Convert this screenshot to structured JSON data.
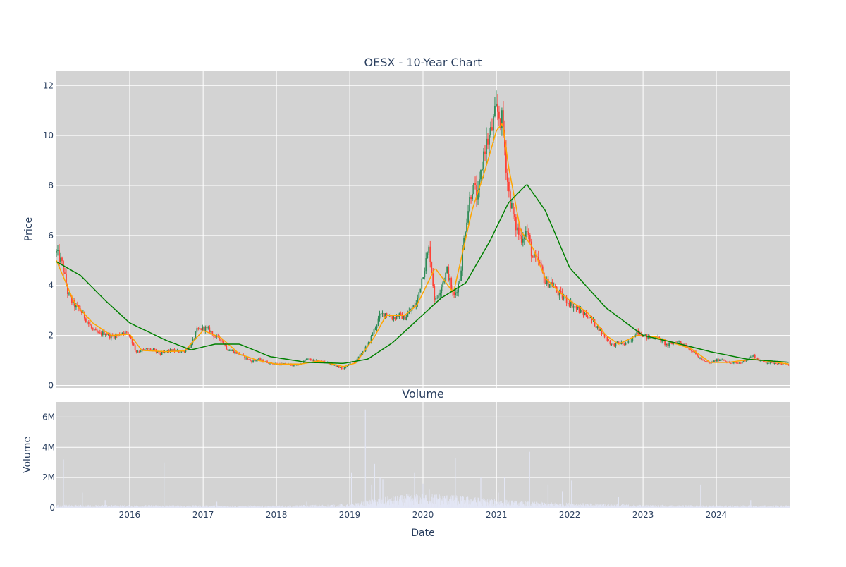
{
  "chart_data": [
    {
      "type": "candlestick",
      "title": "OESX - 10-Year Chart",
      "xlabel": "",
      "ylabel": "Price",
      "xlim": [
        "2015-01-01",
        "2024-12-31"
      ],
      "ylim": [
        -0.1,
        12.6
      ],
      "y_ticks": [
        0,
        2,
        4,
        6,
        8,
        10,
        12
      ],
      "grid": true,
      "legend": "none",
      "colors": {
        "up": "#2e8b57",
        "down": "#ff4136",
        "ma_short": "#ffa500",
        "ma_long": "#008000",
        "plot_bg": "#d3d3d3"
      },
      "price_path": [
        [
          "2015-01-01",
          5.3
        ],
        [
          "2015-02-01",
          4.8
        ],
        [
          "2015-03-01",
          3.6
        ],
        [
          "2015-04-01",
          3.2
        ],
        [
          "2015-05-01",
          3.0
        ],
        [
          "2015-06-01",
          2.6
        ],
        [
          "2015-07-01",
          2.2
        ],
        [
          "2015-08-01",
          2.05
        ],
        [
          "2015-09-01",
          2.1
        ],
        [
          "2015-10-01",
          1.95
        ],
        [
          "2015-11-01",
          2.0
        ],
        [
          "2015-12-01",
          2.15
        ],
        [
          "2016-01-01",
          2.0
        ],
        [
          "2016-02-01",
          1.35
        ],
        [
          "2016-03-01",
          1.4
        ],
        [
          "2016-04-01",
          1.45
        ],
        [
          "2016-05-01",
          1.4
        ],
        [
          "2016-06-01",
          1.25
        ],
        [
          "2016-07-01",
          1.35
        ],
        [
          "2016-08-01",
          1.4
        ],
        [
          "2016-09-01",
          1.35
        ],
        [
          "2016-10-01",
          1.4
        ],
        [
          "2016-11-01",
          1.6
        ],
        [
          "2016-12-01",
          2.2
        ],
        [
          "2017-01-01",
          2.3
        ],
        [
          "2017-02-01",
          2.2
        ],
        [
          "2017-03-01",
          1.95
        ],
        [
          "2017-04-01",
          1.85
        ],
        [
          "2017-05-01",
          1.45
        ],
        [
          "2017-06-01",
          1.35
        ],
        [
          "2017-07-01",
          1.25
        ],
        [
          "2017-08-01",
          1.1
        ],
        [
          "2017-09-01",
          0.95
        ],
        [
          "2017-10-01",
          1.05
        ],
        [
          "2017-11-01",
          0.95
        ],
        [
          "2017-12-01",
          0.9
        ],
        [
          "2018-01-01",
          0.85
        ],
        [
          "2018-02-01",
          0.85
        ],
        [
          "2018-03-01",
          0.85
        ],
        [
          "2018-04-01",
          0.8
        ],
        [
          "2018-05-01",
          0.85
        ],
        [
          "2018-06-01",
          1.05
        ],
        [
          "2018-07-01",
          1.0
        ],
        [
          "2018-08-01",
          0.95
        ],
        [
          "2018-09-01",
          0.95
        ],
        [
          "2018-10-01",
          0.85
        ],
        [
          "2018-11-01",
          0.75
        ],
        [
          "2018-12-01",
          0.65
        ],
        [
          "2019-01-01",
          0.9
        ],
        [
          "2019-02-01",
          0.95
        ],
        [
          "2019-03-01",
          1.3
        ],
        [
          "2019-04-01",
          1.6
        ],
        [
          "2019-05-01",
          2.2
        ],
        [
          "2019-06-01",
          2.8
        ],
        [
          "2019-07-01",
          2.9
        ],
        [
          "2019-08-01",
          2.7
        ],
        [
          "2019-09-01",
          2.8
        ],
        [
          "2019-10-01",
          2.7
        ],
        [
          "2019-11-01",
          3.0
        ],
        [
          "2019-12-01",
          3.3
        ],
        [
          "2020-01-01",
          4.5
        ],
        [
          "2020-02-01",
          5.5
        ],
        [
          "2020-03-01",
          3.3
        ],
        [
          "2020-04-01",
          4.0
        ],
        [
          "2020-05-01",
          4.6
        ],
        [
          "2020-06-01",
          3.5
        ],
        [
          "2020-07-01",
          4.2
        ],
        [
          "2020-08-01",
          6.5
        ],
        [
          "2020-09-01",
          8.0
        ],
        [
          "2020-10-01",
          7.5
        ],
        [
          "2020-11-01",
          9.5
        ],
        [
          "2020-12-01",
          10.0
        ],
        [
          "2021-01-01",
          11.0
        ],
        [
          "2021-02-01",
          10.5
        ],
        [
          "2021-03-01",
          7.8
        ],
        [
          "2021-04-01",
          6.5
        ],
        [
          "2021-05-01",
          5.9
        ],
        [
          "2021-06-01",
          6.2
        ],
        [
          "2021-07-01",
          5.1
        ],
        [
          "2021-08-01",
          4.9
        ],
        [
          "2021-09-01",
          4.1
        ],
        [
          "2021-10-01",
          4.1
        ],
        [
          "2021-11-01",
          3.7
        ],
        [
          "2021-12-01",
          3.5
        ],
        [
          "2022-01-01",
          3.3
        ],
        [
          "2022-02-01",
          3.1
        ],
        [
          "2022-03-01",
          2.9
        ],
        [
          "2022-04-01",
          2.8
        ],
        [
          "2022-05-01",
          2.5
        ],
        [
          "2022-06-01",
          2.2
        ],
        [
          "2022-07-01",
          1.9
        ],
        [
          "2022-08-01",
          1.6
        ],
        [
          "2022-09-01",
          1.7
        ],
        [
          "2022-10-01",
          1.65
        ],
        [
          "2022-11-01",
          1.75
        ],
        [
          "2022-12-01",
          2.2
        ],
        [
          "2023-01-01",
          2.0
        ],
        [
          "2023-02-01",
          1.9
        ],
        [
          "2023-03-01",
          1.95
        ],
        [
          "2023-04-01",
          1.8
        ],
        [
          "2023-05-01",
          1.6
        ],
        [
          "2023-06-01",
          1.7
        ],
        [
          "2023-07-01",
          1.75
        ],
        [
          "2023-08-01",
          1.6
        ],
        [
          "2023-09-01",
          1.4
        ],
        [
          "2023-10-01",
          1.15
        ],
        [
          "2023-11-01",
          0.95
        ],
        [
          "2023-12-01",
          0.9
        ],
        [
          "2024-01-01",
          1.0
        ],
        [
          "2024-02-01",
          1.05
        ],
        [
          "2024-03-01",
          0.9
        ],
        [
          "2024-04-01",
          0.88
        ],
        [
          "2024-05-01",
          0.9
        ],
        [
          "2024-06-01",
          1.05
        ],
        [
          "2024-07-01",
          1.2
        ],
        [
          "2024-08-01",
          1.0
        ],
        [
          "2024-09-01",
          0.92
        ],
        [
          "2024-10-01",
          0.9
        ],
        [
          "2024-11-01",
          0.9
        ],
        [
          "2024-12-01",
          0.85
        ],
        [
          "2024-12-31",
          0.8
        ]
      ],
      "ma_short": [
        [
          "2015-01-01",
          5.0
        ],
        [
          "2015-04-01",
          3.3
        ],
        [
          "2015-07-01",
          2.5
        ],
        [
          "2015-10-01",
          2.0
        ],
        [
          "2016-01-01",
          2.05
        ],
        [
          "2016-03-01",
          1.4
        ],
        [
          "2016-07-01",
          1.35
        ],
        [
          "2016-10-01",
          1.38
        ],
        [
          "2017-01-01",
          2.2
        ],
        [
          "2017-04-01",
          1.9
        ],
        [
          "2017-07-01",
          1.25
        ],
        [
          "2017-10-01",
          1.0
        ],
        [
          "2018-01-01",
          0.85
        ],
        [
          "2018-05-01",
          0.85
        ],
        [
          "2018-08-01",
          0.98
        ],
        [
          "2018-12-01",
          0.75
        ],
        [
          "2019-02-01",
          0.9
        ],
        [
          "2019-05-01",
          1.9
        ],
        [
          "2019-07-01",
          2.8
        ],
        [
          "2019-10-01",
          2.8
        ],
        [
          "2019-12-01",
          3.2
        ],
        [
          "2020-03-01",
          4.7
        ],
        [
          "2020-06-01",
          3.7
        ],
        [
          "2020-09-01",
          7.0
        ],
        [
          "2020-11-01",
          8.5
        ],
        [
          "2021-01-01",
          10.2
        ],
        [
          "2021-02-01",
          10.5
        ],
        [
          "2021-03-01",
          8.8
        ],
        [
          "2021-05-01",
          6.2
        ],
        [
          "2021-07-01",
          5.5
        ],
        [
          "2021-09-01",
          4.3
        ],
        [
          "2021-11-01",
          3.8
        ],
        [
          "2022-01-01",
          3.4
        ],
        [
          "2022-04-01",
          2.9
        ],
        [
          "2022-07-01",
          2.0
        ],
        [
          "2022-09-01",
          1.65
        ],
        [
          "2022-12-01",
          2.0
        ],
        [
          "2023-03-01",
          1.95
        ],
        [
          "2023-06-01",
          1.7
        ],
        [
          "2023-09-01",
          1.45
        ],
        [
          "2023-12-01",
          0.92
        ],
        [
          "2024-03-01",
          0.92
        ],
        [
          "2024-07-01",
          1.05
        ],
        [
          "2024-12-31",
          0.85
        ]
      ],
      "ma_long": [
        [
          "2015-01-01",
          4.95
        ],
        [
          "2015-05-01",
          4.4
        ],
        [
          "2015-09-01",
          3.4
        ],
        [
          "2016-01-01",
          2.5
        ],
        [
          "2016-07-01",
          1.8
        ],
        [
          "2016-11-01",
          1.42
        ],
        [
          "2017-03-01",
          1.65
        ],
        [
          "2017-07-01",
          1.65
        ],
        [
          "2017-12-01",
          1.15
        ],
        [
          "2018-06-01",
          0.92
        ],
        [
          "2018-12-01",
          0.88
        ],
        [
          "2019-04-01",
          1.05
        ],
        [
          "2019-08-01",
          1.7
        ],
        [
          "2019-12-01",
          2.6
        ],
        [
          "2020-04-01",
          3.5
        ],
        [
          "2020-08-01",
          4.1
        ],
        [
          "2020-12-01",
          5.8
        ],
        [
          "2021-03-01",
          7.3
        ],
        [
          "2021-06-01",
          8.05
        ],
        [
          "2021-09-01",
          7.0
        ],
        [
          "2022-01-01",
          4.7
        ],
        [
          "2022-07-01",
          3.1
        ],
        [
          "2023-01-01",
          2.0
        ],
        [
          "2023-06-01",
          1.72
        ],
        [
          "2023-12-01",
          1.35
        ],
        [
          "2024-06-01",
          1.05
        ],
        [
          "2024-12-31",
          0.92
        ]
      ]
    },
    {
      "type": "bar",
      "title": "Volume",
      "xlabel": "Date",
      "ylabel": "Volume",
      "xlim": [
        "2015-01-01",
        "2024-12-31"
      ],
      "ylim": [
        0,
        7000000
      ],
      "y_ticks": [
        0,
        2000000,
        4000000,
        6000000
      ],
      "y_tick_labels": [
        "0",
        "2M",
        "4M",
        "6M"
      ],
      "x_ticks": [
        "2016-01-01",
        "2017-01-01",
        "2018-01-01",
        "2019-01-01",
        "2020-01-01",
        "2021-01-01",
        "2022-01-01",
        "2023-01-01",
        "2024-01-01"
      ],
      "x_tick_labels": [
        "2016",
        "2017",
        "2018",
        "2019",
        "2020",
        "2021",
        "2022",
        "2023",
        "2024"
      ],
      "grid": true,
      "legend": "none",
      "colors": {
        "bar": "#e3e6f5",
        "plot_bg": "#d3d3d3"
      },
      "base_volume": [
        [
          "2015-01-01",
          120000
        ],
        [
          "2016-01-01",
          110000
        ],
        [
          "2017-01-01",
          100000
        ],
        [
          "2018-01-01",
          90000
        ],
        [
          "2019-01-01",
          150000
        ],
        [
          "2019-06-01",
          400000
        ],
        [
          "2020-01-01",
          600000
        ],
        [
          "2020-06-01",
          500000
        ],
        [
          "2021-01-01",
          350000
        ],
        [
          "2021-06-01",
          250000
        ],
        [
          "2022-01-01",
          200000
        ],
        [
          "2023-01-01",
          120000
        ],
        [
          "2024-01-01",
          100000
        ],
        [
          "2024-12-31",
          100000
        ]
      ],
      "spikes": [
        [
          "2015-02-05",
          3200000
        ],
        [
          "2015-05-10",
          1000000
        ],
        [
          "2015-09-01",
          500000
        ],
        [
          "2016-06-20",
          3000000
        ],
        [
          "2017-03-10",
          400000
        ],
        [
          "2018-06-01",
          400000
        ],
        [
          "2019-01-10",
          2300000
        ],
        [
          "2019-03-20",
          6500000
        ],
        [
          "2019-04-20",
          1500000
        ],
        [
          "2019-05-05",
          2900000
        ],
        [
          "2019-06-01",
          2000000
        ],
        [
          "2019-06-15",
          1900000
        ],
        [
          "2019-11-20",
          2300000
        ],
        [
          "2020-01-01",
          1600000
        ],
        [
          "2020-02-01",
          1200000
        ],
        [
          "2020-06-10",
          3300000
        ],
        [
          "2020-10-15",
          2000000
        ],
        [
          "2021-01-10",
          1000000
        ],
        [
          "2021-02-10",
          2000000
        ],
        [
          "2021-06-15",
          3700000
        ],
        [
          "2021-09-15",
          1500000
        ],
        [
          "2021-11-25",
          1100000
        ],
        [
          "2022-01-10",
          1800000
        ],
        [
          "2022-09-01",
          700000
        ],
        [
          "2023-10-15",
          1500000
        ],
        [
          "2024-06-20",
          500000
        ]
      ]
    }
  ]
}
